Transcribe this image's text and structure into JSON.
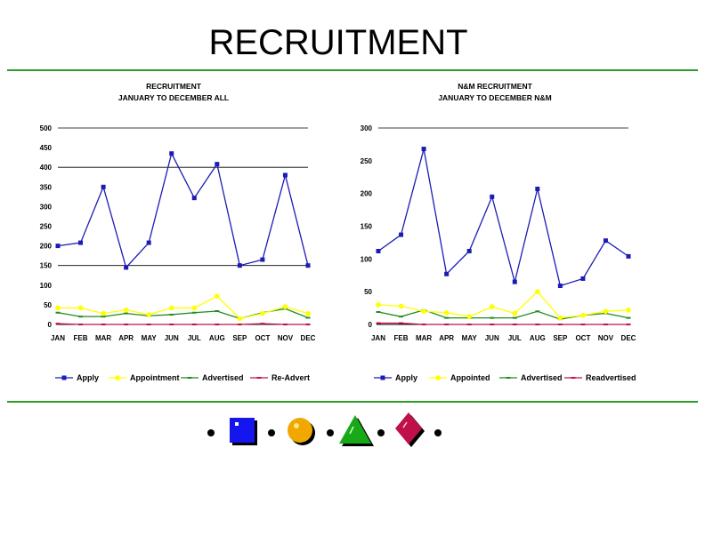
{
  "page": {
    "title": "RECRUITMENT",
    "accent_color": "#2e9a2e"
  },
  "decor": {
    "icons": [
      "blue-square-icon",
      "orange-circle-icon",
      "green-triangle-icon",
      "crimson-diamond-icon"
    ],
    "colors": [
      "#1515ee",
      "#f0a800",
      "#18a818",
      "#c0104a"
    ]
  },
  "chart_data": [
    {
      "type": "line",
      "title": "RECRUITMENT",
      "subtitle": "JANUARY TO DECEMBER ALL",
      "categories": [
        "JAN",
        "FEB",
        "MAR",
        "APR",
        "MAY",
        "JUN",
        "JUL",
        "AUG",
        "SEP",
        "OCT",
        "NOV",
        "DEC"
      ],
      "ylim": [
        0,
        500
      ],
      "yticks": [
        0,
        50,
        100,
        150,
        200,
        250,
        300,
        350,
        400,
        450,
        500
      ],
      "gridlines": [
        150,
        400,
        500
      ],
      "series": [
        {
          "name": "Apply",
          "color": "#1c1cb4",
          "marker": "square",
          "values": [
            200,
            208,
            350,
            145,
            208,
            435,
            322,
            408,
            150,
            165,
            380,
            150
          ]
        },
        {
          "name": "Appointment",
          "color": "#ffff00",
          "marker": "circle",
          "values": [
            42,
            42,
            28,
            37,
            25,
            42,
            42,
            72,
            15,
            28,
            45,
            28
          ]
        },
        {
          "name": "Advertised",
          "color": "#1f8c1f",
          "marker": "dash",
          "values": [
            30,
            20,
            20,
            28,
            22,
            25,
            30,
            34,
            15,
            30,
            40,
            17
          ]
        },
        {
          "name": "Re-Advert",
          "color": "#c0104a",
          "marker": "dash",
          "values": [
            2,
            0,
            0,
            0,
            0,
            0,
            0,
            0,
            0,
            2,
            0,
            0
          ]
        }
      ]
    },
    {
      "type": "line",
      "title": "N&M RECRUITMENT",
      "subtitle": "JANUARY TO DECEMBER N&M",
      "categories": [
        "JAN",
        "FEB",
        "MAR",
        "APR",
        "MAY",
        "JUN",
        "JUL",
        "AUG",
        "SEP",
        "OCT",
        "NOV",
        "DEC"
      ],
      "ylim": [
        0,
        300
      ],
      "yticks": [
        0,
        50,
        100,
        150,
        200,
        250,
        300
      ],
      "gridlines": [
        300
      ],
      "series": [
        {
          "name": "Apply",
          "color": "#1c1cb4",
          "marker": "square",
          "values": [
            112,
            137,
            268,
            77,
            112,
            195,
            65,
            207,
            59,
            70,
            128,
            104
          ]
        },
        {
          "name": "Appointed",
          "color": "#ffff00",
          "marker": "circle",
          "values": [
            30,
            28,
            20,
            18,
            12,
            27,
            17,
            50,
            10,
            14,
            20,
            22
          ]
        },
        {
          "name": "Advertised",
          "color": "#1f8c1f",
          "marker": "dash",
          "values": [
            19,
            12,
            22,
            10,
            10,
            10,
            10,
            20,
            8,
            14,
            17,
            10
          ]
        },
        {
          "name": "Readvertised",
          "color": "#c0104a",
          "marker": "dash",
          "values": [
            2,
            2,
            0,
            0,
            0,
            0,
            0,
            0,
            0,
            0,
            0,
            0
          ]
        }
      ]
    }
  ]
}
